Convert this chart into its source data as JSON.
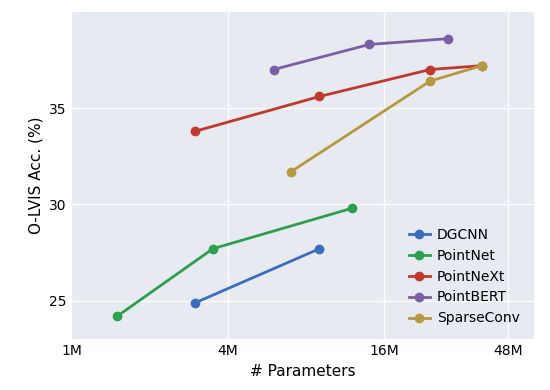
{
  "title": "",
  "xlabel": "# Parameters",
  "ylabel": "O-LVIS Acc. (%)",
  "plot_bg_color": "#e8eaf2",
  "fig_bg_color": "#ffffff",
  "series": [
    {
      "label": "DGCNN",
      "color": "#3b6dbf",
      "x": [
        3000000,
        9000000
      ],
      "y": [
        24.9,
        27.7
      ]
    },
    {
      "label": "PointNet",
      "color": "#2e9e4f",
      "x": [
        1500000,
        3500000,
        12000000
      ],
      "y": [
        24.2,
        27.7,
        29.8
      ]
    },
    {
      "label": "PointNeXt",
      "color": "#c0392b",
      "x": [
        3000000,
        9000000,
        24000000,
        38000000
      ],
      "y": [
        33.8,
        35.6,
        37.0,
        37.2
      ]
    },
    {
      "label": "PointBERT",
      "color": "#7b5ea7",
      "x": [
        6000000,
        14000000,
        28000000
      ],
      "y": [
        37.0,
        38.3,
        38.6
      ]
    },
    {
      "label": "SparseConv",
      "color": "#b5993e",
      "x": [
        7000000,
        24000000,
        38000000
      ],
      "y": [
        31.7,
        36.4,
        37.2
      ]
    }
  ],
  "xlim_log": [
    1000000,
    60000000
  ],
  "xticks": [
    1000000,
    4000000,
    16000000,
    48000000
  ],
  "xtick_labels": [
    "1M",
    "4M",
    "16M",
    "48M"
  ],
  "ylim": [
    23.0,
    40.0
  ],
  "yticks": [
    25,
    30,
    35
  ],
  "marker": "o",
  "markersize": 6,
  "linewidth": 2.0,
  "legend_loc": "lower right",
  "legend_fontsize": 10,
  "axis_fontsize": 11,
  "tick_fontsize": 10
}
